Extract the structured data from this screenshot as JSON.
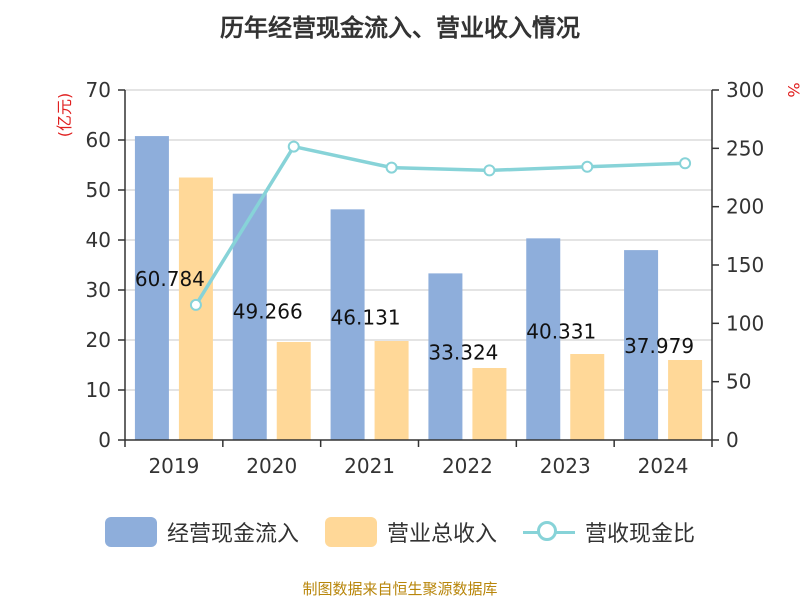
{
  "chart_data": {
    "type": "bar",
    "title": "历年经营现金流入、营业收入情况",
    "categories": [
      "2019",
      "2020",
      "2021",
      "2022",
      "2023",
      "2024"
    ],
    "series": [
      {
        "name": "经营现金流入",
        "type": "bar",
        "axis": "left",
        "color": "#8eaedb",
        "values": [
          60.784,
          49.266,
          46.131,
          33.324,
          40.331,
          37.979
        ]
      },
      {
        "name": "营业总收入",
        "type": "bar",
        "axis": "left",
        "color": "#ffd898",
        "values": [
          52.5,
          19.6,
          19.8,
          14.4,
          17.2,
          16.0
        ]
      },
      {
        "name": "营收现金比",
        "type": "line",
        "axis": "right",
        "color": "#87d3d8",
        "values": [
          115.8,
          251.5,
          233.5,
          231.1,
          234.2,
          237.2
        ]
      }
    ],
    "y_left": {
      "unit": "(亿元)",
      "min": 0,
      "max": 70,
      "ticks": [
        0,
        10,
        20,
        30,
        40,
        50,
        60,
        70
      ]
    },
    "y_right": {
      "unit": "%",
      "min": 0,
      "max": 300,
      "ticks": [
        0,
        50,
        100,
        150,
        200,
        250,
        300
      ]
    },
    "data_labels": [
      "60.784",
      "49.266",
      "46.131",
      "33.324",
      "40.331",
      "37.979"
    ],
    "grid": true,
    "legend_position": "bottom"
  },
  "source": "制图数据来自恒生聚源数据库"
}
